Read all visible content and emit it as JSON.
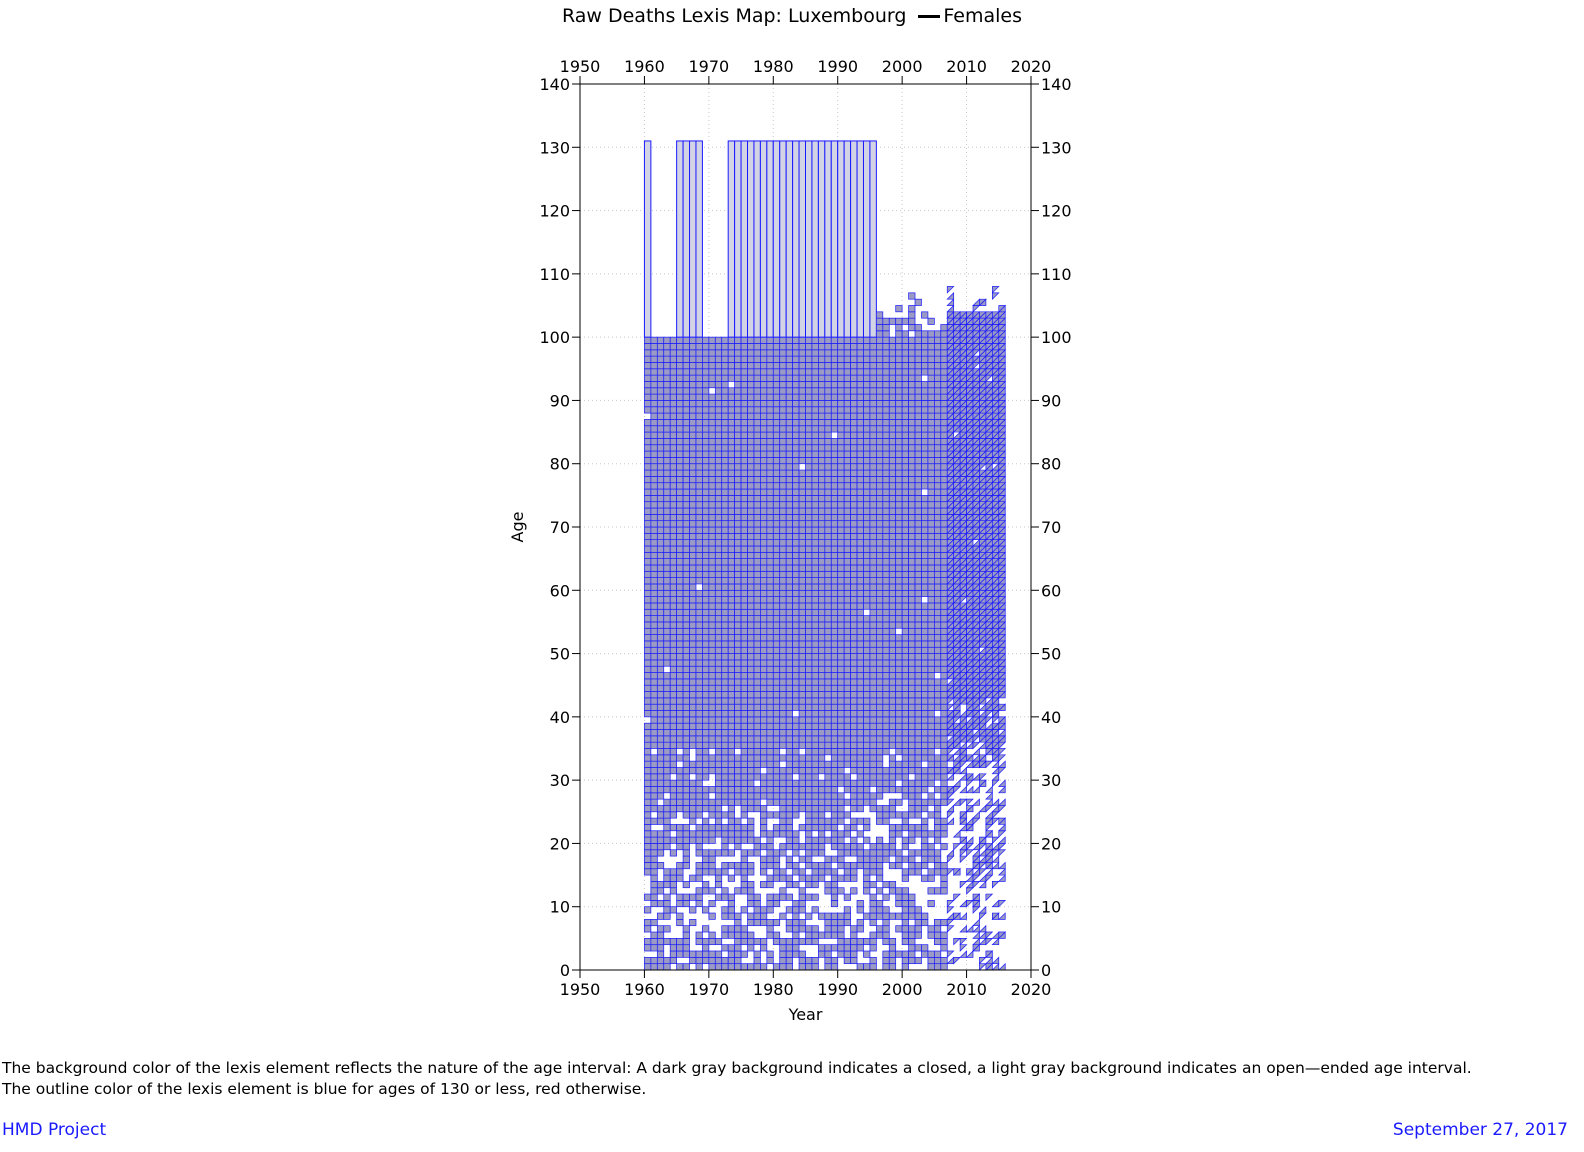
{
  "chart_data": {
    "type": "heatmap",
    "title": "Raw Deaths Lexis Map: Luxembourg",
    "legend": {
      "entries": [
        "Females"
      ],
      "placement": "top"
    },
    "xlabel": "Year",
    "ylabel": "Age",
    "xlim": [
      1950,
      2020
    ],
    "ylim": [
      0,
      140
    ],
    "x_ticks": [
      1950,
      1960,
      1970,
      1980,
      1990,
      2000,
      2010,
      2020
    ],
    "y_ticks": [
      0,
      10,
      20,
      30,
      40,
      50,
      60,
      70,
      80,
      90,
      100,
      110,
      120,
      130,
      140
    ],
    "grid": true,
    "regions": {
      "closed_intervals": {
        "years": [
          1960,
          2006
        ],
        "ages": [
          0,
          99
        ],
        "fill": "#9a9ac4",
        "outline": "#1a1aff"
      },
      "open_intervals": {
        "age_range": [
          100,
          131
        ],
        "year_blocks": [
          [
            1960,
            1960
          ],
          [
            1965,
            1968
          ],
          [
            1973,
            1995
          ]
        ],
        "fill": "#d3d3e6",
        "outline": "#1a1aff"
      },
      "sparse_old_ages": {
        "years": [
          1996,
          2006
        ],
        "ages": [
          100,
          110
        ]
      },
      "triangle_lexis": {
        "years": [
          2007,
          2015
        ],
        "ages": [
          0,
          108
        ]
      },
      "dense_above_age": 35,
      "sparse_below_age": 35
    }
  },
  "footnote": {
    "line1": "The background color of the lexis element reflects the nature of the age interval: A dark gray background indicates a closed, a light gray background indicates an open—ended age interval.",
    "line2": "The outline color of the lexis element is blue for ages of 130 or less, red otherwise."
  },
  "footer": {
    "left": "HMD Project",
    "right": "September 27, 2017"
  },
  "colors": {
    "outline_blue": "#1a1aff",
    "closed_fill": "#9a9ac4",
    "open_fill": "#d3d3e6"
  }
}
